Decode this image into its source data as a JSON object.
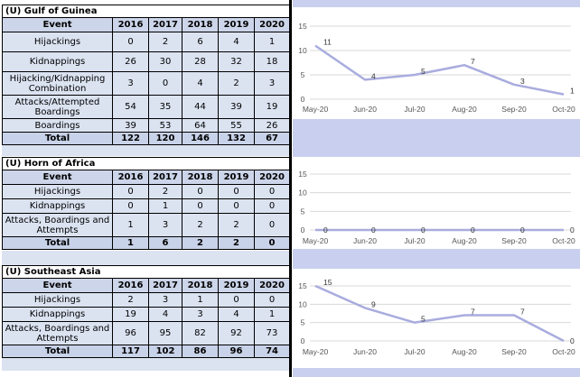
{
  "tables": [
    {
      "title": "(U) Gulf of Guinea",
      "header": [
        "Event",
        "2016",
        "2017",
        "2018",
        "2019",
        "2020"
      ],
      "rows": [
        {
          "label": "Hijackings",
          "values": [
            "0",
            "2",
            "6",
            "4",
            "1"
          ]
        },
        {
          "label": "Kidnappings",
          "values": [
            "26",
            "30",
            "28",
            "32",
            "18"
          ]
        },
        {
          "label": "Hijacking/Kidnapping Combination",
          "values": [
            "3",
            "0",
            "4",
            "2",
            "3"
          ]
        },
        {
          "label": "Attacks/Attempted Boardings",
          "values": [
            "54",
            "35",
            "44",
            "39",
            "19"
          ]
        },
        {
          "label": "Boardings",
          "values": [
            "39",
            "53",
            "64",
            "55",
            "26"
          ]
        }
      ],
      "total": {
        "label": "Total",
        "values": [
          "122",
          "120",
          "146",
          "132",
          "67"
        ]
      }
    },
    {
      "title": "(U) Horn of Africa",
      "header": [
        "Event",
        "2016",
        "2017",
        "2018",
        "2019",
        "2020"
      ],
      "rows": [
        {
          "label": "Hijackings",
          "values": [
            "0",
            "2",
            "0",
            "0",
            "0"
          ]
        },
        {
          "label": "Kidnappings",
          "values": [
            "0",
            "1",
            "0",
            "0",
            "0"
          ]
        },
        {
          "label": "Attacks, Boardings and Attempts",
          "values": [
            "1",
            "3",
            "2",
            "2",
            "0"
          ]
        }
      ],
      "total": {
        "label": "Total",
        "values": [
          "1",
          "6",
          "2",
          "2",
          "0"
        ]
      }
    },
    {
      "title": "(U) Southeast Asia",
      "header": [
        "Event",
        "2016",
        "2017",
        "2018",
        "2019",
        "2020"
      ],
      "rows": [
        {
          "label": "Hijackings",
          "values": [
            "2",
            "3",
            "1",
            "0",
            "0"
          ]
        },
        {
          "label": "Kidnappings",
          "values": [
            "19",
            "4",
            "3",
            "4",
            "1"
          ]
        },
        {
          "label": "Attacks, Boardings and Attempts",
          "values": [
            "96",
            "95",
            "82",
            "92",
            "73"
          ]
        }
      ],
      "total": {
        "label": "Total",
        "values": [
          "117",
          "102",
          "86",
          "96",
          "74"
        ]
      }
    }
  ],
  "chart_data": [
    {
      "type": "line",
      "categories": [
        "May-20",
        "Jun-20",
        "Jul-20",
        "Aug-20",
        "Sep-20",
        "Oct-20"
      ],
      "values": [
        11,
        4,
        5,
        7,
        3,
        1
      ],
      "ylim": [
        0,
        15
      ],
      "yticks": [
        0,
        5,
        10,
        15
      ],
      "grid": true,
      "color": "#a9acde"
    },
    {
      "type": "line",
      "categories": [
        "May-20",
        "Jun-20",
        "Jul-20",
        "Aug-20",
        "Sep-20",
        "Oct-20"
      ],
      "values": [
        0,
        0,
        0,
        0,
        0,
        0
      ],
      "ylim": [
        0,
        15
      ],
      "yticks": [
        0,
        5,
        10,
        15
      ],
      "grid": true,
      "color": "#a9acde"
    },
    {
      "type": "line",
      "categories": [
        "May-20",
        "Jun-20",
        "Jul-20",
        "Aug-20",
        "Sep-20",
        "Oct-20"
      ],
      "values": [
        15,
        9,
        5,
        7,
        7,
        0
      ],
      "ylim": [
        0,
        15
      ],
      "yticks": [
        0,
        5,
        10,
        15
      ],
      "grid": true,
      "color": "#a9acde"
    }
  ]
}
